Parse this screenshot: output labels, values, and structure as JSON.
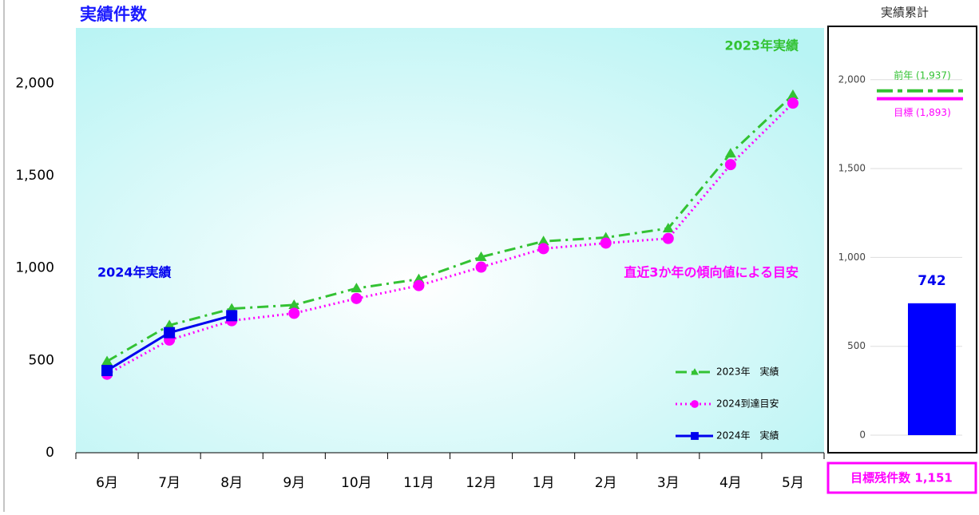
{
  "chart_data": [
    {
      "type": "line",
      "title": "実績件数",
      "categories": [
        "6月",
        "7月",
        "8月",
        "9月",
        "10月",
        "11月",
        "12月",
        "1月",
        "2月",
        "3月",
        "4月",
        "5月"
      ],
      "series": [
        {
          "name": "2023年　実績",
          "color": "#33c233",
          "line_style": "dashdot",
          "marker": "triangle",
          "values": [
            495,
            690,
            780,
            800,
            890,
            940,
            1060,
            1145,
            1165,
            1215,
            1620,
            1937
          ]
        },
        {
          "name": "2024到達目安",
          "color": "#ff00ff",
          "line_style": "dotted",
          "marker": "circle",
          "values": [
            425,
            610,
            715,
            755,
            835,
            905,
            1005,
            1105,
            1135,
            1160,
            1560,
            1893
          ]
        },
        {
          "name": "2024年　実績",
          "color": "#0000ee",
          "line_style": "solid",
          "marker": "square",
          "values": [
            445,
            650,
            742,
            null,
            null,
            null,
            null,
            null,
            null,
            null,
            null,
            null
          ]
        }
      ],
      "annotations": [
        {
          "text": "2023年実績",
          "color": "#33c233"
        },
        {
          "text": "2024年実績",
          "color": "#0000ee"
        },
        {
          "text": "直近3か年の傾向値による目安",
          "color": "#ff00ff"
        }
      ],
      "ylim": [
        0,
        2300
      ],
      "yticks": [
        0,
        {
          "value": 500,
          "label": "500"
        },
        {
          "value": 1000,
          "label": "1,000"
        },
        {
          "value": 1500,
          "label": "1,500"
        },
        {
          "value": 2000,
          "label": "2,000"
        }
      ]
    },
    {
      "type": "bar",
      "title": "実績累計",
      "values": [
        742
      ],
      "color": "#0000ff",
      "reference_lines": [
        {
          "value": 1937,
          "label": "前年 (1,937)",
          "color": "#33c233",
          "line_style": "dashdot"
        },
        {
          "value": 1893,
          "label": "目標 (1,893)",
          "color": "#ff00ff",
          "line_style": "solid"
        }
      ],
      "footer": "目標残件数 1,151",
      "footer_color": "#ff00ff",
      "ylim": [
        0,
        2300
      ],
      "yticks": [
        0,
        500,
        {
          "value": 1000,
          "label": "1,000"
        },
        {
          "value": 1500,
          "label": "1,500"
        },
        {
          "value": 2000,
          "label": "2,000"
        }
      ],
      "grid": true
    }
  ]
}
